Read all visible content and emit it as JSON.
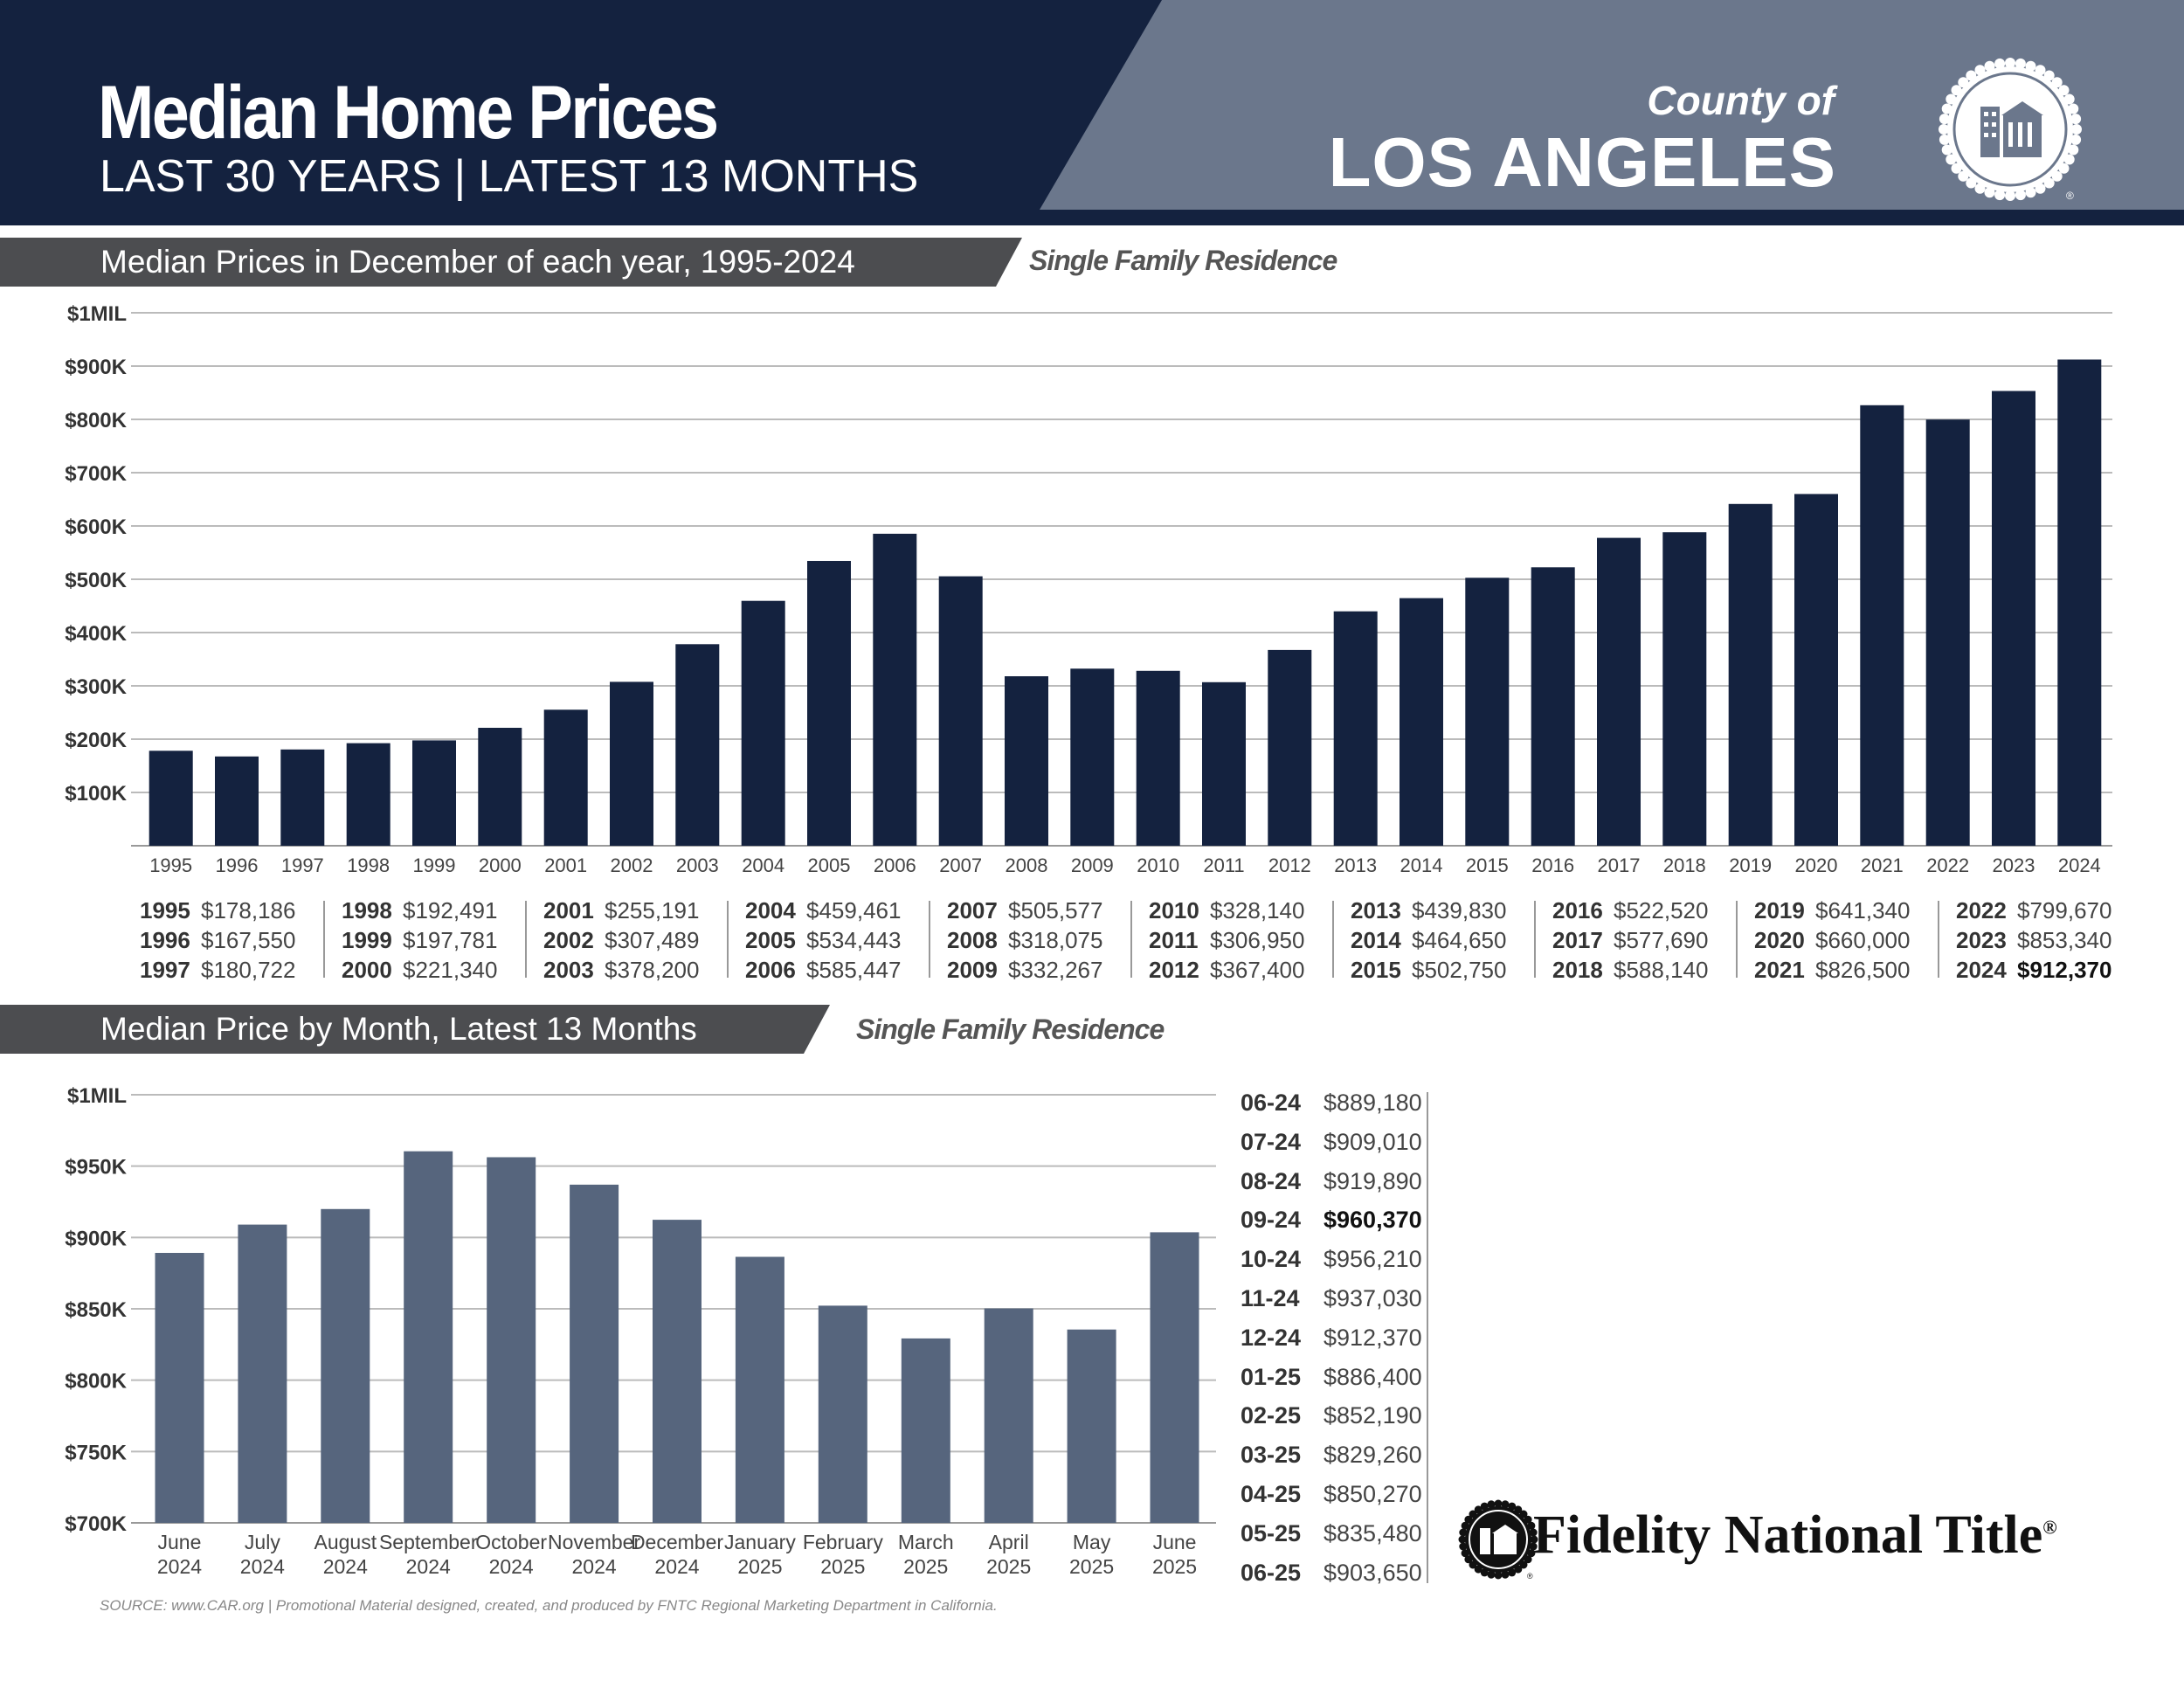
{
  "header": {
    "title": "Median Home Prices",
    "subtitle": "LAST 30 YEARS | LATEST 13 MONTHS",
    "county_label": "County of",
    "county_name": "LOS ANGELES"
  },
  "colors": {
    "navy": "#14223f",
    "slate": "#6b778c",
    "bar_annual": "#14223f",
    "bar_monthly": "#56657d",
    "band": "#4c4d50"
  },
  "section_annual": {
    "title": "Median Prices in December of each year, 1995-2024",
    "tag": "Single Family Residence"
  },
  "section_monthly": {
    "title": "Median Price by Month, Latest 13 Months",
    "tag": "Single Family Residence"
  },
  "chart_data": [
    {
      "type": "bar",
      "categories": [
        "1995",
        "1996",
        "1997",
        "1998",
        "1999",
        "2000",
        "2001",
        "2002",
        "2003",
        "2004",
        "2005",
        "2006",
        "2007",
        "2008",
        "2009",
        "2010",
        "2011",
        "2012",
        "2013",
        "2014",
        "2015",
        "2016",
        "2017",
        "2018",
        "2019",
        "2020",
        "2021",
        "2022",
        "2023",
        "2024"
      ],
      "values": [
        178186,
        167550,
        180722,
        192491,
        197781,
        221340,
        255191,
        307489,
        378200,
        459461,
        534443,
        585447,
        505577,
        318075,
        332267,
        328140,
        306950,
        367400,
        439830,
        464650,
        502750,
        522520,
        577690,
        588140,
        641340,
        660000,
        826500,
        799670,
        853340,
        912370
      ],
      "ytick_labels": [
        "$100K",
        "$200K",
        "$300K",
        "$400K",
        "$500K",
        "$600K",
        "$700K",
        "$800K",
        "$900K",
        "$1MIL"
      ],
      "ylim": [
        0,
        1000000
      ],
      "grid": true
    },
    {
      "type": "bar",
      "categories": [
        [
          "June",
          "2024"
        ],
        [
          "July",
          "2024"
        ],
        [
          "August",
          "2024"
        ],
        [
          "September",
          "2024"
        ],
        [
          "October",
          "2024"
        ],
        [
          "November",
          "2024"
        ],
        [
          "December",
          "2024"
        ],
        [
          "January",
          "2025"
        ],
        [
          "February",
          "2025"
        ],
        [
          "March",
          "2025"
        ],
        [
          "April",
          "2025"
        ],
        [
          "May",
          "2025"
        ],
        [
          "June",
          "2025"
        ]
      ],
      "values": [
        889180,
        909010,
        919890,
        960370,
        956210,
        937030,
        912370,
        886400,
        852190,
        829260,
        850270,
        835480,
        903650
      ],
      "ytick_labels": [
        "$700K",
        "$750K",
        "$800K",
        "$850K",
        "$900K",
        "$950K",
        "$1MIL"
      ],
      "ylim": [
        700000,
        1000000
      ],
      "grid": true
    }
  ],
  "annual_table": [
    [
      [
        "1995",
        "$178,186"
      ],
      [
        "1996",
        "$167,550"
      ],
      [
        "1997",
        "$180,722"
      ]
    ],
    [
      [
        "1998",
        "$192,491"
      ],
      [
        "1999",
        "$197,781"
      ],
      [
        "2000",
        "$221,340"
      ]
    ],
    [
      [
        "2001",
        "$255,191"
      ],
      [
        "2002",
        "$307,489"
      ],
      [
        "2003",
        "$378,200"
      ]
    ],
    [
      [
        "2004",
        "$459,461"
      ],
      [
        "2005",
        "$534,443"
      ],
      [
        "2006",
        "$585,447"
      ]
    ],
    [
      [
        "2007",
        "$505,577"
      ],
      [
        "2008",
        "$318,075"
      ],
      [
        "2009",
        "$332,267"
      ]
    ],
    [
      [
        "2010",
        "$328,140"
      ],
      [
        "2011",
        "$306,950"
      ],
      [
        "2012",
        "$367,400"
      ]
    ],
    [
      [
        "2013",
        "$439,830"
      ],
      [
        "2014",
        "$464,650"
      ],
      [
        "2015",
        "$502,750"
      ]
    ],
    [
      [
        "2016",
        "$522,520"
      ],
      [
        "2017",
        "$577,690"
      ],
      [
        "2018",
        "$588,140"
      ]
    ],
    [
      [
        "2019",
        "$641,340"
      ],
      [
        "2020",
        "$660,000"
      ],
      [
        "2021",
        "$826,500"
      ]
    ],
    [
      [
        "2022",
        "$799,670"
      ],
      [
        "2023",
        "$853,340"
      ],
      [
        "2024",
        "$912,370"
      ]
    ]
  ],
  "annual_table_highlight": "2024",
  "monthly_table": [
    [
      "06-24",
      "$889,180"
    ],
    [
      "07-24",
      "$909,010"
    ],
    [
      "08-24",
      "$919,890"
    ],
    [
      "09-24",
      "$960,370"
    ],
    [
      "10-24",
      "$956,210"
    ],
    [
      "11-24",
      "$937,030"
    ],
    [
      "12-24",
      "$912,370"
    ],
    [
      "01-25",
      "$886,400"
    ],
    [
      "02-25",
      "$852,190"
    ],
    [
      "03-25",
      "$829,260"
    ],
    [
      "04-25",
      "$850,270"
    ],
    [
      "05-25",
      "$835,480"
    ],
    [
      "06-25",
      "$903,650"
    ]
  ],
  "monthly_table_highlight": "09-24",
  "footer": {
    "source": "SOURCE: www.CAR.org | Promotional Material designed, created, and produced by FNTC Regional Marketing Department in California.",
    "brand": "Fidelity National Title",
    "brand_mark": "®"
  },
  "icons": [
    "county-seal-icon",
    "fidelity-seal-icon"
  ]
}
